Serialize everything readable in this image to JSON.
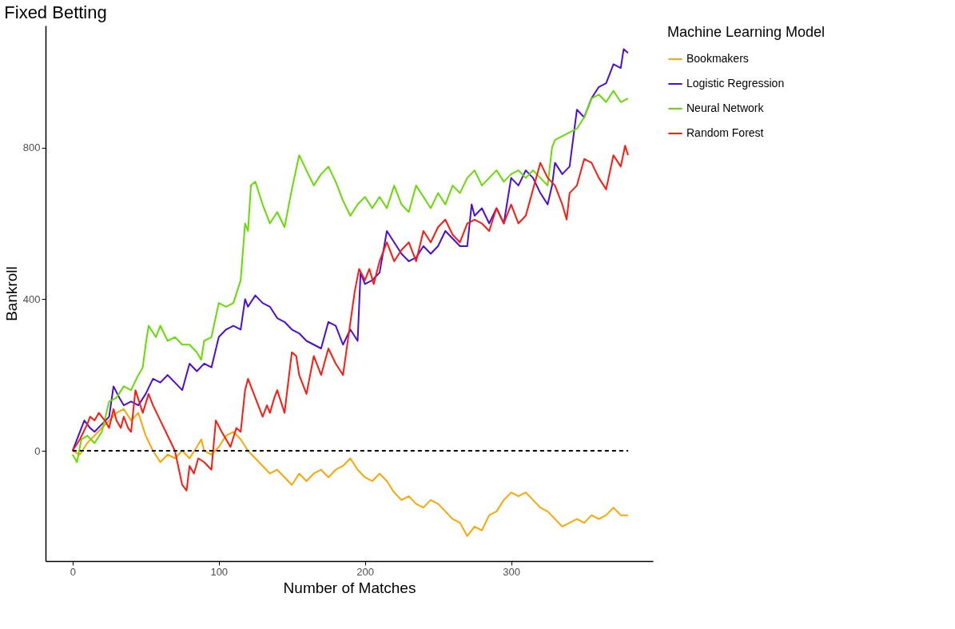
{
  "chart_data": {
    "type": "line",
    "title": "Fixed Betting",
    "xlabel": "Number of Matches",
    "ylabel": "Bankroll",
    "legend_title": "Machine Learning Model",
    "xlim": [
      -18.5,
      397
    ],
    "ylim": [
      -291,
      1122
    ],
    "xticks": [
      0,
      100,
      200,
      300
    ],
    "yticks": [
      0,
      400,
      800
    ],
    "grid": false,
    "legend": "right",
    "series": [
      {
        "name": "Bookmakers",
        "color": "#ffa500",
        "x": [
          0,
          5,
          10,
          20,
          30,
          35,
          40,
          45,
          50,
          55,
          60,
          65,
          70,
          75,
          80,
          85,
          88,
          90,
          95,
          100,
          105,
          110,
          115,
          120,
          125,
          130,
          135,
          140,
          145,
          150,
          155,
          160,
          165,
          170,
          175,
          180,
          185,
          190,
          195,
          200,
          205,
          210,
          215,
          220,
          225,
          230,
          235,
          240,
          245,
          250,
          255,
          260,
          265,
          270,
          275,
          280,
          285,
          290,
          295,
          300,
          305,
          310,
          315,
          320,
          325,
          330,
          335,
          340,
          345,
          350,
          355,
          360,
          365,
          370,
          375,
          380
        ],
        "values": [
          0,
          -10,
          20,
          60,
          100,
          110,
          80,
          100,
          40,
          0,
          -30,
          -10,
          -20,
          0,
          -20,
          10,
          30,
          0,
          -10,
          10,
          40,
          50,
          30,
          0,
          -20,
          -40,
          -60,
          -50,
          -70,
          -90,
          -60,
          -80,
          -60,
          -50,
          -70,
          -50,
          -40,
          -20,
          -50,
          -70,
          -80,
          -60,
          -80,
          -110,
          -130,
          -120,
          -140,
          -150,
          -130,
          -140,
          -160,
          -180,
          -190,
          -225,
          -200,
          -210,
          -170,
          -160,
          -130,
          -110,
          -120,
          -110,
          -130,
          -150,
          -160,
          -180,
          -200,
          -190,
          -180,
          -190,
          -170,
          -180,
          -170,
          -150,
          -170,
          -170
        ]
      },
      {
        "name": "Logistic Regression",
        "color": "#4b0ddc",
        "x": [
          0,
          5,
          8,
          12,
          15,
          20,
          25,
          28,
          32,
          35,
          40,
          45,
          50,
          55,
          60,
          65,
          70,
          75,
          80,
          85,
          90,
          95,
          100,
          105,
          110,
          115,
          118,
          120,
          125,
          130,
          135,
          140,
          145,
          150,
          155,
          160,
          165,
          170,
          175,
          180,
          185,
          190,
          195,
          197,
          200,
          205,
          210,
          215,
          220,
          225,
          230,
          235,
          240,
          245,
          250,
          255,
          260,
          265,
          270,
          273,
          275,
          280,
          285,
          290,
          295,
          300,
          305,
          310,
          315,
          320,
          325,
          328,
          330,
          335,
          340,
          345,
          350,
          355,
          360,
          365,
          370,
          375,
          377,
          380
        ],
        "values": [
          0,
          50,
          80,
          60,
          50,
          70,
          90,
          170,
          140,
          120,
          130,
          120,
          150,
          190,
          180,
          200,
          180,
          160,
          230,
          210,
          230,
          220,
          300,
          320,
          330,
          320,
          400,
          380,
          410,
          390,
          380,
          350,
          340,
          320,
          310,
          290,
          280,
          270,
          340,
          330,
          280,
          320,
          290,
          470,
          440,
          450,
          470,
          580,
          550,
          520,
          500,
          510,
          540,
          520,
          540,
          580,
          560,
          540,
          540,
          650,
          620,
          640,
          600,
          640,
          600,
          720,
          700,
          740,
          720,
          680,
          650,
          700,
          760,
          730,
          750,
          900,
          880,
          930,
          960,
          970,
          1020,
          1010,
          1060,
          1050
        ]
      },
      {
        "name": "Neural Network",
        "color": "#66dd00",
        "x": [
          0,
          3,
          6,
          10,
          15,
          20,
          25,
          30,
          35,
          40,
          45,
          48,
          50,
          52,
          57,
          60,
          65,
          70,
          75,
          80,
          85,
          88,
          90,
          95,
          100,
          105,
          110,
          115,
          118,
          120,
          122,
          125,
          130,
          135,
          140,
          145,
          150,
          155,
          160,
          165,
          170,
          175,
          180,
          185,
          190,
          195,
          200,
          205,
          210,
          215,
          220,
          225,
          230,
          235,
          240,
          245,
          250,
          255,
          260,
          265,
          270,
          275,
          280,
          285,
          290,
          295,
          300,
          305,
          310,
          315,
          320,
          325,
          328,
          330,
          335,
          340,
          345,
          350,
          355,
          360,
          365,
          370,
          375,
          380
        ],
        "values": [
          -10,
          -30,
          30,
          40,
          20,
          50,
          130,
          140,
          170,
          160,
          200,
          220,
          280,
          330,
          300,
          330,
          290,
          300,
          280,
          280,
          260,
          240,
          290,
          300,
          390,
          380,
          390,
          450,
          600,
          580,
          700,
          710,
          650,
          600,
          630,
          590,
          690,
          780,
          740,
          700,
          730,
          750,
          710,
          660,
          620,
          650,
          670,
          640,
          670,
          640,
          700,
          650,
          630,
          700,
          670,
          640,
          680,
          650,
          700,
          680,
          720,
          740,
          700,
          720,
          740,
          710,
          730,
          740,
          720,
          740,
          720,
          700,
          800,
          820,
          830,
          840,
          850,
          880,
          930,
          940,
          920,
          950,
          920,
          930
        ]
      },
      {
        "name": "Random Forest",
        "color": "#ff1a0f",
        "x": [
          0,
          5,
          10,
          12,
          15,
          18,
          22,
          25,
          28,
          30,
          33,
          35,
          38,
          40,
          43,
          48,
          52,
          55,
          60,
          65,
          70,
          75,
          78,
          80,
          83,
          86,
          90,
          95,
          98,
          102,
          105,
          108,
          112,
          115,
          118,
          120,
          125,
          130,
          133,
          135,
          138,
          140,
          145,
          150,
          153,
          155,
          160,
          165,
          170,
          175,
          180,
          185,
          193,
          196,
          200,
          203,
          206,
          210,
          215,
          220,
          225,
          230,
          235,
          240,
          245,
          250,
          255,
          260,
          265,
          270,
          275,
          280,
          285,
          290,
          295,
          300,
          305,
          310,
          315,
          320,
          325,
          330,
          335,
          338,
          340,
          345,
          350,
          355,
          360,
          365,
          370,
          375,
          378,
          380
        ],
        "values": [
          0,
          30,
          70,
          90,
          80,
          100,
          80,
          60,
          110,
          80,
          60,
          90,
          60,
          50,
          160,
          100,
          150,
          120,
          80,
          40,
          0,
          -90,
          -105,
          -40,
          -60,
          -20,
          -30,
          -50,
          80,
          50,
          30,
          10,
          60,
          50,
          160,
          190,
          140,
          90,
          120,
          100,
          140,
          160,
          100,
          260,
          250,
          200,
          150,
          250,
          200,
          270,
          230,
          200,
          420,
          480,
          450,
          480,
          440,
          500,
          550,
          500,
          530,
          550,
          500,
          580,
          550,
          590,
          610,
          570,
          550,
          600,
          610,
          600,
          580,
          640,
          600,
          650,
          600,
          620,
          690,
          760,
          720,
          700,
          650,
          610,
          680,
          700,
          770,
          760,
          720,
          690,
          780,
          750,
          805,
          780
        ]
      },
      {
        "type": "line",
        "color": "#000000",
        "line_style": "dashed",
        "x": [
          0,
          380
        ],
        "values": [
          0,
          0
        ]
      }
    ]
  }
}
